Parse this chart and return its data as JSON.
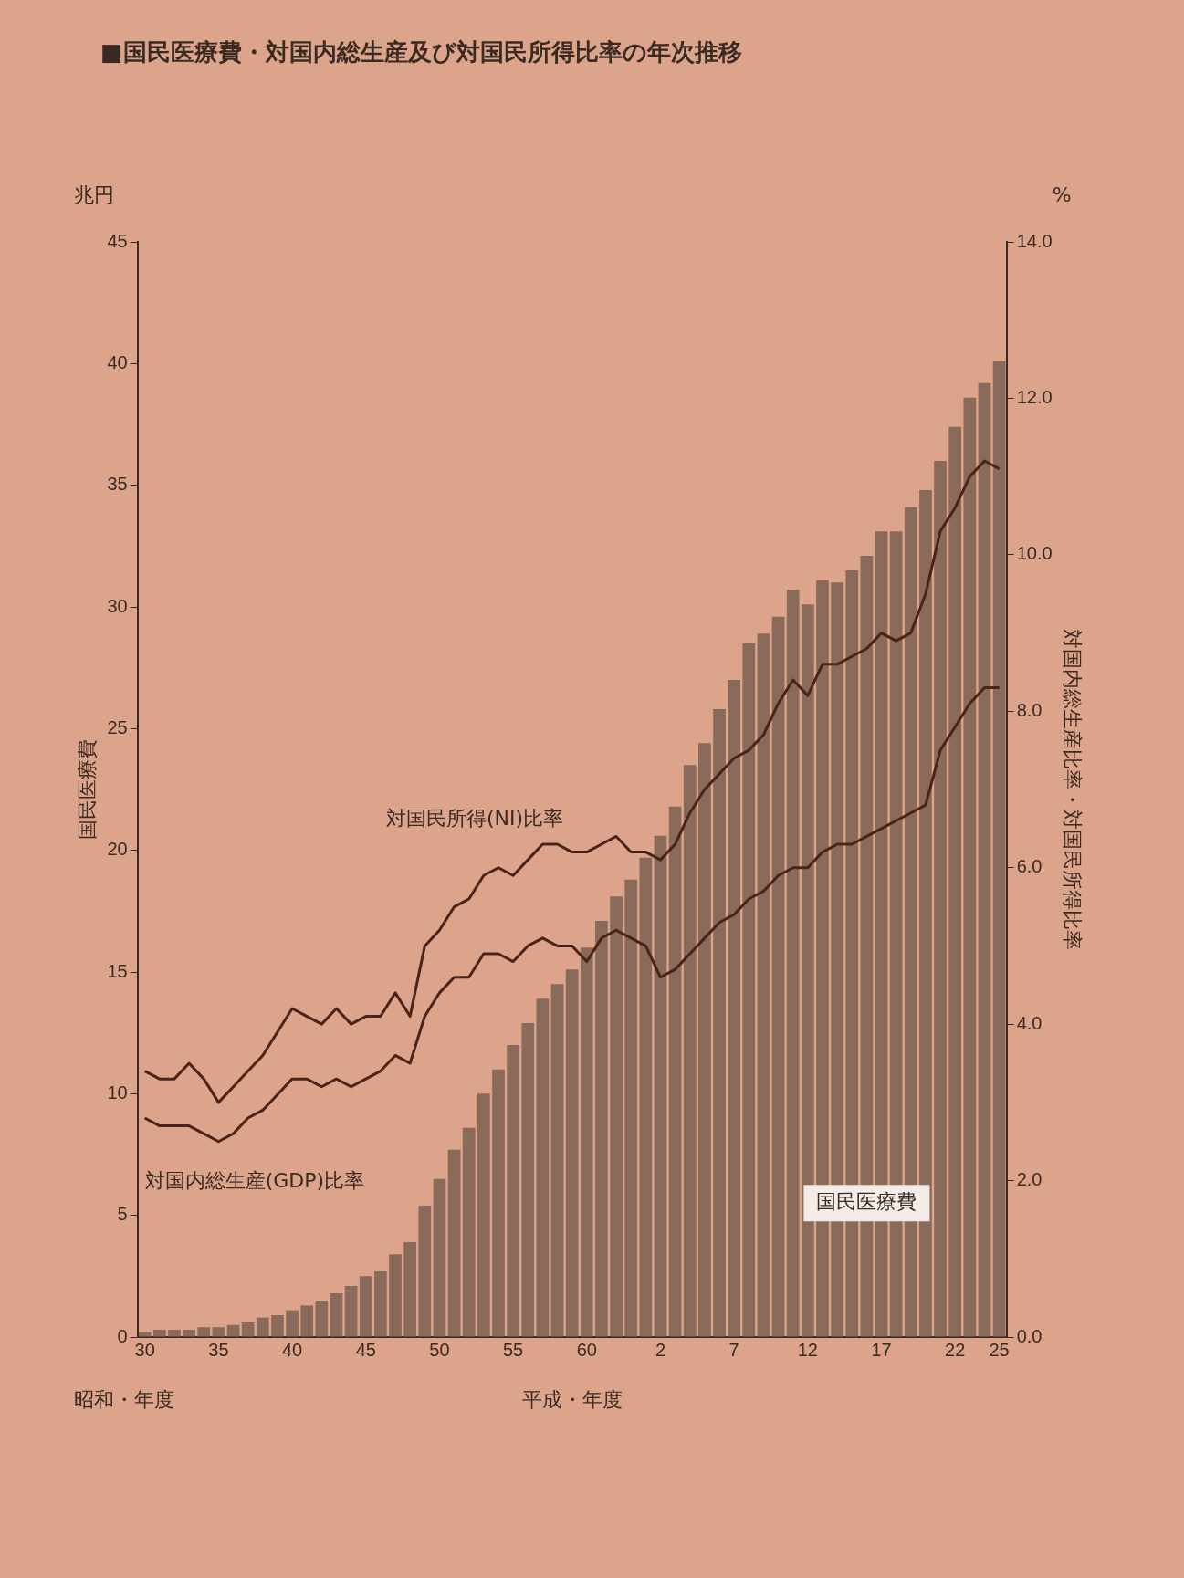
{
  "chart_data": {
    "type": "bar",
    "title": "■国民医療費・対国内総生産及び対国民所得比率の年次推移",
    "ylabel": "国民医療費",
    "y2label": "対国内総生産比率・対国民所得比率",
    "annotations": [
      "兆円",
      "%",
      "昭和・年度",
      "平成・年度"
    ],
    "categories": [
      "30",
      null,
      null,
      null,
      null,
      "35",
      null,
      null,
      null,
      null,
      "40",
      null,
      null,
      null,
      null,
      "45",
      null,
      null,
      null,
      null,
      "50",
      null,
      null,
      null,
      null,
      "55",
      null,
      null,
      null,
      null,
      "60",
      null,
      null,
      null,
      null,
      "2",
      null,
      null,
      null,
      null,
      "7",
      null,
      null,
      null,
      null,
      "12",
      null,
      null,
      null,
      null,
      "17",
      null,
      null,
      null,
      null,
      "22",
      null,
      null,
      "25"
    ],
    "series": [
      {
        "name": "国民医療費",
        "color": "#8a6a5a",
        "values": [
          0.2,
          0.3,
          0.3,
          0.3,
          0.4,
          0.4,
          0.5,
          0.6,
          0.8,
          0.9,
          1.1,
          1.3,
          1.5,
          1.8,
          2.1,
          2.5,
          2.7,
          3.4,
          3.9,
          5.4,
          6.5,
          7.7,
          8.6,
          10.0,
          11.0,
          12.0,
          12.9,
          13.9,
          14.5,
          15.1,
          16.0,
          17.1,
          18.1,
          18.8,
          19.7,
          20.6,
          21.8,
          23.5,
          24.4,
          25.8,
          27.0,
          28.5,
          28.9,
          29.6,
          30.7,
          30.1,
          31.1,
          31.0,
          31.5,
          32.1,
          33.1,
          33.1,
          34.1,
          34.8,
          36.0,
          37.4,
          38.6,
          39.2,
          40.1
        ]
      },
      {
        "name": "対国民所得(NI)比率",
        "type": "line",
        "axis": "y2",
        "color": "#4a2418",
        "values": [
          3.4,
          3.3,
          3.3,
          3.5,
          3.3,
          3.0,
          3.2,
          3.4,
          3.6,
          3.9,
          4.2,
          4.1,
          4.0,
          4.2,
          4.0,
          4.1,
          4.1,
          4.4,
          4.1,
          5.0,
          5.2,
          5.5,
          5.6,
          5.9,
          6.0,
          5.9,
          6.1,
          6.3,
          6.3,
          6.2,
          6.2,
          6.3,
          6.4,
          6.2,
          6.2,
          6.1,
          6.3,
          6.7,
          7.0,
          7.2,
          7.4,
          7.5,
          7.7,
          8.1,
          8.4,
          8.2,
          8.6,
          8.6,
          8.7,
          8.8,
          9.0,
          8.9,
          9.0,
          9.5,
          10.3,
          10.6,
          11.0,
          11.2,
          11.1
        ]
      },
      {
        "name": "対国内総生産(GDP)比率",
        "type": "line",
        "axis": "y2",
        "color": "#4a2418",
        "values": [
          2.8,
          2.7,
          2.7,
          2.7,
          2.6,
          2.5,
          2.6,
          2.8,
          2.9,
          3.1,
          3.3,
          3.3,
          3.2,
          3.3,
          3.2,
          3.3,
          3.4,
          3.6,
          3.5,
          4.1,
          4.4,
          4.6,
          4.6,
          4.9,
          4.9,
          4.8,
          5.0,
          5.1,
          5.0,
          5.0,
          4.8,
          5.1,
          5.2,
          5.1,
          5.0,
          4.6,
          4.7,
          4.9,
          5.1,
          5.3,
          5.4,
          5.6,
          5.7,
          5.9,
          6.0,
          6.0,
          6.2,
          6.3,
          6.3,
          6.4,
          6.5,
          6.6,
          6.7,
          6.8,
          7.5,
          7.8,
          8.1,
          8.3,
          8.3
        ]
      }
    ],
    "ylim": [
      0,
      45
    ],
    "yticks": [
      0,
      5,
      10,
      15,
      20,
      25,
      30,
      35,
      40,
      45
    ],
    "y2lim": [
      0,
      14
    ],
    "y2ticks": [
      {
        "value": 0,
        "label": "0.0"
      },
      {
        "value": 2,
        "label": "2.0"
      },
      {
        "value": 4,
        "label": "4.0"
      },
      {
        "value": 6,
        "label": "6.0"
      },
      {
        "value": 8,
        "label": "8.0"
      },
      {
        "value": 10,
        "label": "10.0"
      },
      {
        "value": 12,
        "label": "12.0"
      },
      {
        "value": 14,
        "label": "14.0"
      }
    ],
    "grid": false,
    "legend": false,
    "marker": "none",
    "line_style": "solid"
  }
}
